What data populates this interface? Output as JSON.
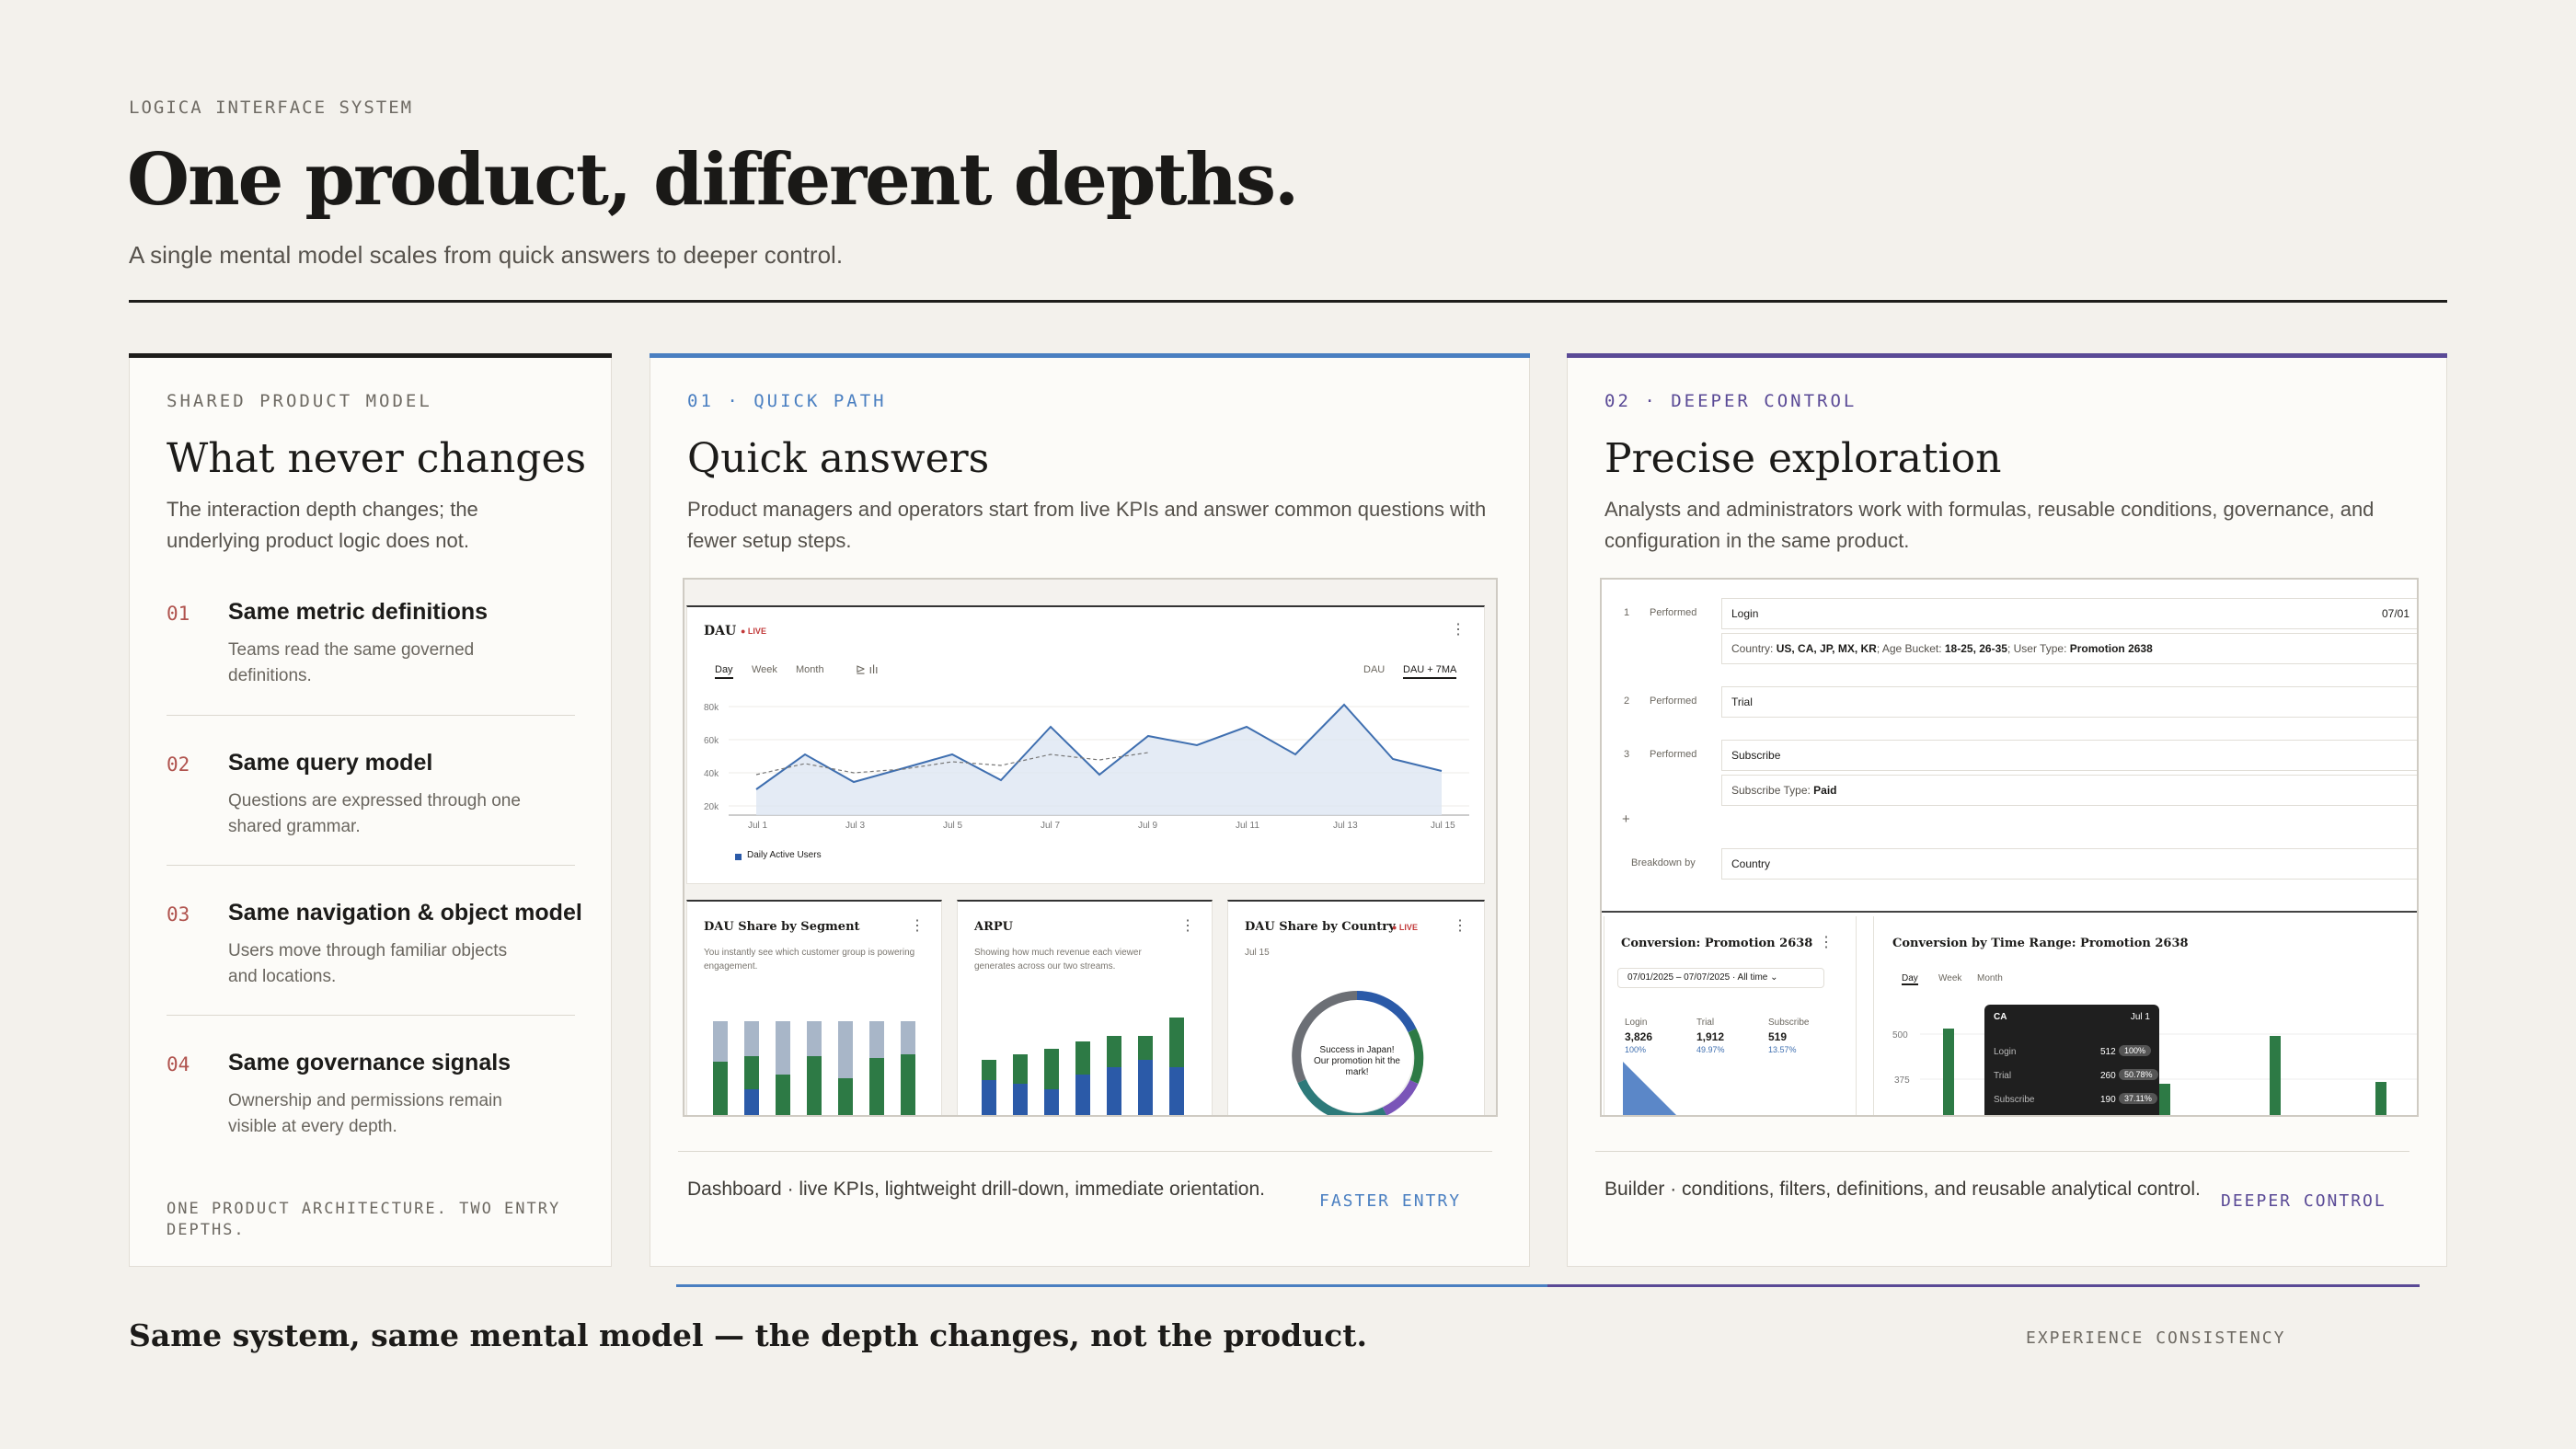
{
  "header": {
    "eyebrow": "LOGICA INTERFACE SYSTEM",
    "title": "One product, different depths.",
    "subtitle": "A single mental model scales from quick answers to deeper control."
  },
  "shared": {
    "eyebrow": "SHARED PRODUCT MODEL",
    "title": "What never changes",
    "desc": "The interaction depth changes; the underlying product logic does not.",
    "items": [
      {
        "num": "01",
        "title": "Same metric definitions",
        "desc": "Teams read the same governed definitions."
      },
      {
        "num": "02",
        "title": "Same query model",
        "desc": "Questions are expressed through one shared grammar."
      },
      {
        "num": "03",
        "title": "Same navigation & object model",
        "desc": "Users move through familiar objects and locations."
      },
      {
        "num": "04",
        "title": "Same governance signals",
        "desc": "Ownership and permissions remain visible at every depth."
      }
    ],
    "footer": "ONE PRODUCT ARCHITECTURE. TWO ENTRY DEPTHS."
  },
  "quick": {
    "eyebrow": "01 · QUICK PATH",
    "title": "Quick answers",
    "desc": "Product managers and operators start from live KPIs and answer common questions with fewer setup steps.",
    "footer": "Dashboard · live KPIs, lightweight drill-down, immediate orientation.",
    "tag": "FASTER ENTRY",
    "accent": "#4a7fc1",
    "dau": {
      "title": "DAU",
      "live": "● LIVE",
      "tabs": [
        "Day",
        "Week",
        "Month"
      ],
      "toggles": [
        "DAU",
        "DAU + 7MA"
      ],
      "legend": "Daily Active Users",
      "yticks": [
        "80k",
        "60k",
        "40k",
        "20k"
      ],
      "xticks": [
        "Jul 1",
        "Jul 3",
        "Jul 5",
        "Jul 7",
        "Jul 9",
        "Jul 11",
        "Jul 13",
        "Jul 15"
      ]
    },
    "segment": {
      "title": "DAU Share by Segment",
      "desc": "You instantly see which customer group is powering engagement."
    },
    "arpu": {
      "title": "ARPU",
      "desc": "Showing how much revenue each viewer generates across our two streams."
    },
    "country": {
      "title": "DAU Share by Country",
      "live": "● LIVE",
      "date": "Jul 15",
      "callout": "Success in Japan! Our promotion hit the mark!"
    }
  },
  "deep": {
    "eyebrow": "02 · DEEPER CONTROL",
    "title": "Precise exploration",
    "desc": "Analysts and administrators work with formulas, reusable conditions, governance, and configuration in the same product.",
    "footer": "Builder · conditions, filters, definitions, and reusable analytical control.",
    "tag": "DEEPER CONTROL",
    "accent": "#5a4a96",
    "steps": [
      {
        "n": "1",
        "verb": "Performed",
        "event": "Login",
        "date": "07/01",
        "filter_label": "Country: ",
        "filter_value": "US, CA, JP, MX, KR",
        "filter2_label": "; Age Bucket: ",
        "filter2_value": "18-25, 26-35",
        "filter3_label": "; User Type: ",
        "filter3_value": "Promotion 2638"
      },
      {
        "n": "2",
        "verb": "Performed",
        "event": "Trial"
      },
      {
        "n": "3",
        "verb": "Performed",
        "event": "Subscribe",
        "filter_label": "Subscribe Type: ",
        "filter_value": "Paid"
      }
    ],
    "add": "+",
    "breakdown_label": "Breakdown by",
    "breakdown_value": "Country",
    "conversion": {
      "title": "Conversion: Promotion 2638",
      "range": "07/01/2025 – 07/07/2025  ·  All time  ⌄",
      "cols": [
        {
          "label": "Login",
          "value": "3,826",
          "pct": "100%"
        },
        {
          "label": "Trial",
          "value": "1,912",
          "pct": "49.97%"
        },
        {
          "label": "Subscribe",
          "value": "519",
          "pct": "13.57%"
        }
      ]
    },
    "timerange": {
      "title": "Conversion by Time Range: Promotion 2638",
      "tabs": [
        "Day",
        "Week",
        "Month"
      ],
      "yticks": [
        "500",
        "375"
      ],
      "tooltip": {
        "country": "CA",
        "date": "Jul 1",
        "rows": [
          {
            "label": "Login",
            "value": "512",
            "pct": "100%"
          },
          {
            "label": "Trial",
            "value": "260",
            "pct": "50.78%"
          },
          {
            "label": "Subscribe",
            "value": "190",
            "pct": "37.11%"
          }
        ]
      }
    }
  },
  "bottom": {
    "tagline": "Same system, same mental model — the depth changes, not the product.",
    "tag": "EXPERIENCE CONSISTENCY"
  }
}
